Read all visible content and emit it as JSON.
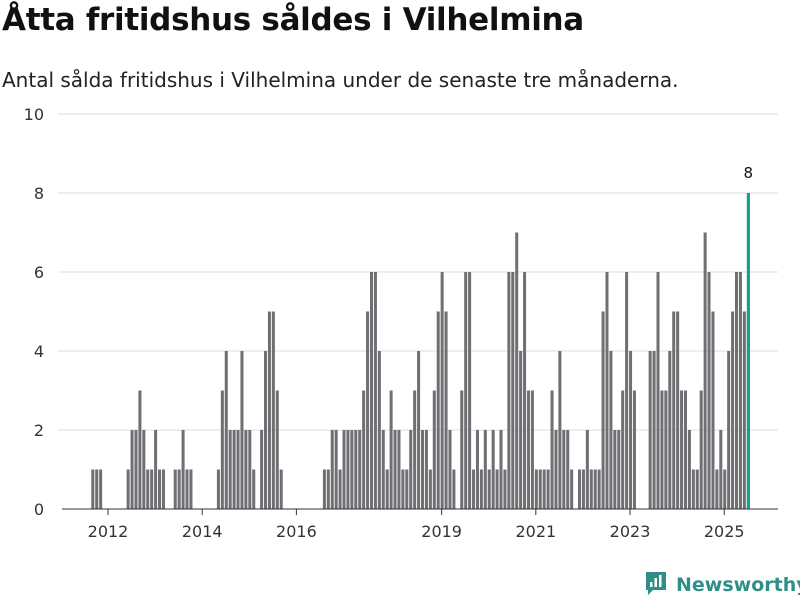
{
  "chart_data": {
    "type": "bar",
    "title": "Åtta fritidshus såldes i Vilhelmina",
    "subtitle": "Antal sålda fritidshus i Vilhelmina under de senaste tre månaderna.",
    "ylim": [
      0,
      10
    ],
    "yticks": [
      "0",
      "2",
      "4",
      "6",
      "8",
      "10"
    ],
    "xticks": [
      {
        "label": "2012",
        "index": 0
      },
      {
        "label": "2014",
        "index": 24
      },
      {
        "label": "2016",
        "index": 48
      },
      {
        "label": "2019",
        "index": 85
      },
      {
        "label": "2021",
        "index": 109
      },
      {
        "label": "2023",
        "index": 133
      },
      {
        "label": "2025",
        "index": 157
      }
    ],
    "start_offset": -4,
    "values": [
      1,
      1,
      1,
      0,
      0,
      0,
      0,
      0,
      0,
      1,
      2,
      2,
      3,
      2,
      1,
      1,
      2,
      1,
      1,
      0,
      0,
      1,
      1,
      2,
      1,
      1,
      0,
      0,
      0,
      0,
      0,
      0,
      1,
      3,
      4,
      2,
      2,
      2,
      4,
      2,
      2,
      1,
      0,
      2,
      4,
      5,
      5,
      3,
      1,
      0,
      0,
      0,
      0,
      0,
      0,
      0,
      0,
      0,
      0,
      1,
      1,
      2,
      2,
      1,
      2,
      2,
      2,
      2,
      2,
      3,
      5,
      6,
      6,
      4,
      2,
      1,
      3,
      2,
      2,
      1,
      1,
      2,
      3,
      4,
      2,
      2,
      1,
      3,
      5,
      6,
      5,
      2,
      1,
      0,
      3,
      6,
      6,
      1,
      2,
      1,
      2,
      1,
      2,
      1,
      2,
      1,
      6,
      6,
      7,
      4,
      6,
      3,
      3,
      1,
      1,
      1,
      1,
      3,
      2,
      4,
      2,
      2,
      1,
      0,
      1,
      1,
      2,
      1,
      1,
      1,
      5,
      6,
      4,
      2,
      2,
      3,
      6,
      4,
      3,
      0,
      0,
      0,
      4,
      4,
      6,
      3,
      3,
      4,
      5,
      5,
      3,
      3,
      2,
      1,
      1,
      3,
      7,
      6,
      5,
      1,
      2,
      1,
      4,
      5,
      6,
      6,
      5,
      8
    ],
    "highlight_label": "8",
    "bar_color": "#6f6f74",
    "highlight_color": "#1a9e8f"
  },
  "brand": {
    "name": "Newsworthy",
    "icon": "newsworthy-logo-icon",
    "color": "#2f8f86"
  }
}
